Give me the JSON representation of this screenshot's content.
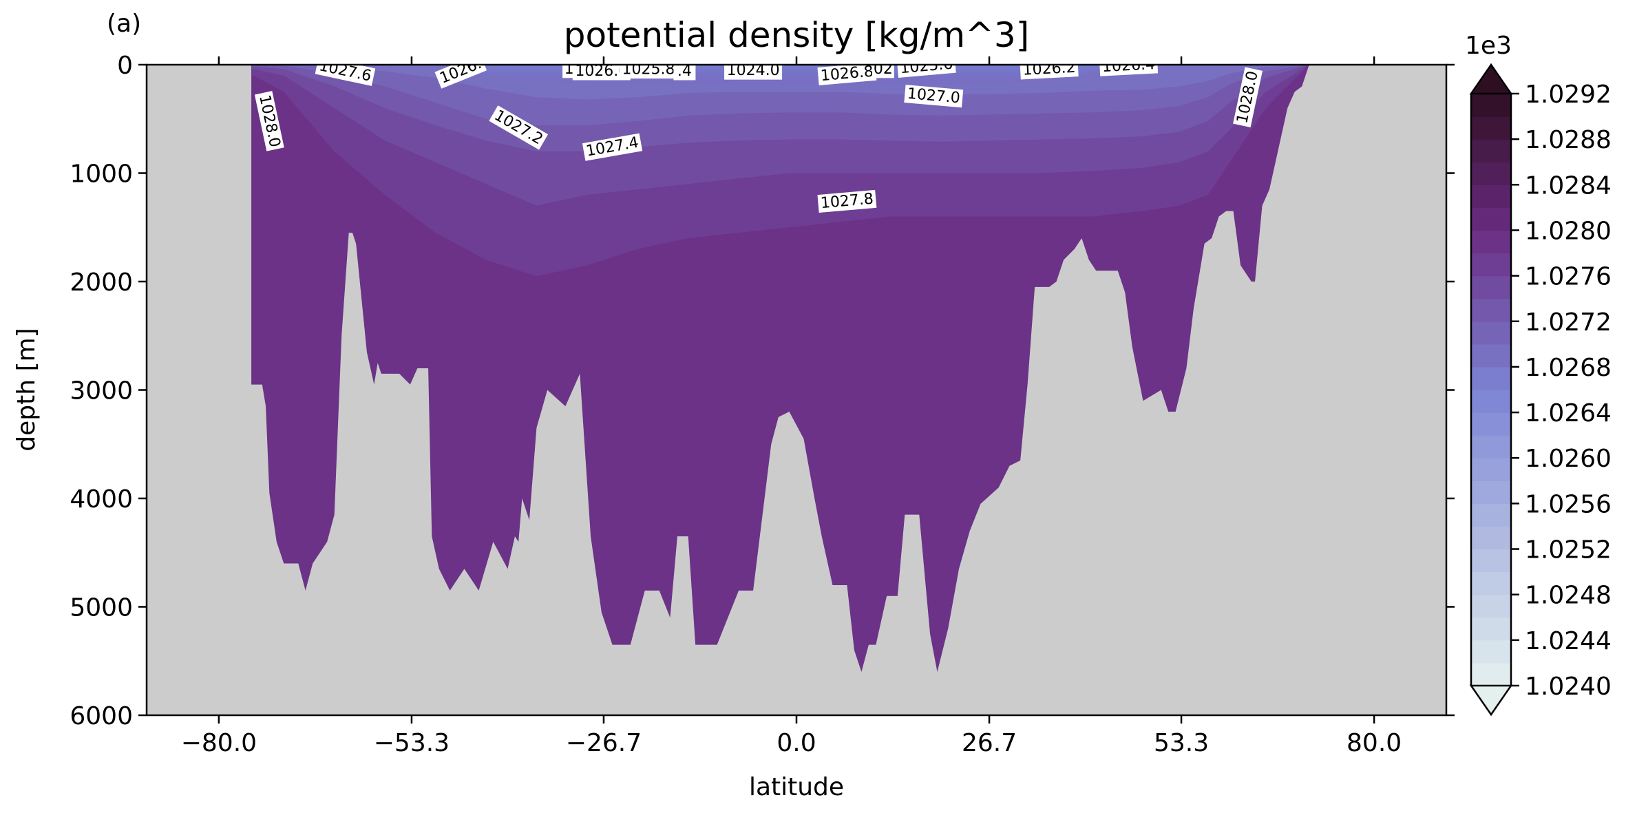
{
  "chart_data": {
    "type": "heatmap",
    "panel_label": "(a)",
    "title": "potential density [kg/m^3]",
    "xlabel": "latitude",
    "ylabel": "depth [m]",
    "xlim": [
      -90,
      90
    ],
    "ylim": [
      6000,
      0
    ],
    "x_ticks": [
      -80.0,
      -53.3,
      -26.7,
      0.0,
      26.7,
      53.3,
      80.0
    ],
    "x_tick_labels": [
      "−80.0",
      "−53.3",
      "−26.7",
      "0.0",
      "26.7",
      "53.3",
      "80.0"
    ],
    "y_ticks": [
      0,
      1000,
      2000,
      3000,
      4000,
      5000,
      6000
    ],
    "y_tick_labels": [
      "0",
      "1000",
      "2000",
      "3000",
      "4000",
      "5000",
      "6000"
    ],
    "colorbar": {
      "multiplier_label": "1e3",
      "range": [
        1.024,
        1.0292
      ],
      "extend": "both",
      "ticks": [
        1.024,
        1.0244,
        1.0248,
        1.0252,
        1.0256,
        1.026,
        1.0264,
        1.0268,
        1.0272,
        1.0276,
        1.028,
        1.0284,
        1.0288,
        1.0292
      ],
      "tick_labels": [
        "1.0240",
        "1.0244",
        "1.0248",
        "1.0252",
        "1.0256",
        "1.0260",
        "1.0264",
        "1.0268",
        "1.0272",
        "1.0276",
        "1.0280",
        "1.0284",
        "1.0288",
        "1.0292"
      ],
      "low_color": "#e4f0ee",
      "mid_color": "#7c84d4",
      "high_color": "#2e0f22"
    },
    "land_color": "#cccccc",
    "deep_color": "#6a2b82",
    "bottom_profile": {
      "lat": [
        -75.5,
        -74.0,
        -73.5,
        -73.0,
        -72.0,
        -71.0,
        -69.0,
        -68.0,
        -67.0,
        -65.0,
        -64.0,
        -63.0,
        -62.0,
        -61.5,
        -61.0,
        -59.5,
        -58.5,
        -58.0,
        -57.5,
        -55.0,
        -53.5,
        -52.5,
        -51.0,
        -50.5,
        -49.5,
        -48.0,
        -46.0,
        -44.0,
        -42.0,
        -40.0,
        -39.0,
        -38.5,
        -38.0,
        -37.0,
        -36.0,
        -34.5,
        -32.0,
        -30.0,
        -28.5,
        -27.0,
        -25.5,
        -23.0,
        -21.0,
        -19.0,
        -17.5,
        -16.5,
        -15.0,
        -14.0,
        -12.0,
        -11.0,
        -8.0,
        -6.0,
        -3.5,
        -2.5,
        -1.0,
        1.0,
        2.5,
        3.5,
        5.0,
        7.0,
        8.0,
        9.0,
        10.0,
        11.0,
        12.5,
        14.0,
        15.0,
        16.0,
        17.0,
        18.5,
        19.5,
        21.0,
        22.5,
        24.0,
        25.5,
        28.0,
        29.5,
        31.0,
        32.0,
        33.0,
        35.0,
        36.0,
        37.0,
        38.5,
        39.5,
        40.5,
        41.5,
        42.5,
        44.5,
        45.5,
        46.5,
        48.0,
        50.5,
        51.5,
        52.5,
        54.0,
        55.0,
        56.5,
        57.5,
        58.5,
        59.5,
        60.5,
        61.5,
        63.0,
        63.5,
        64.5,
        65.5,
        67.0,
        68.0,
        69.0,
        70.0,
        71.0
      ],
      "depth": [
        2950,
        2950,
        3150,
        3950,
        4400,
        4600,
        4600,
        4850,
        4600,
        4400,
        4150,
        2500,
        1550,
        1550,
        1650,
        2650,
        2950,
        2750,
        2850,
        2850,
        2950,
        2800,
        2800,
        4350,
        4650,
        4850,
        4650,
        4850,
        4400,
        4650,
        4350,
        4400,
        4000,
        4200,
        3350,
        3000,
        3150,
        2850,
        4350,
        5050,
        5350,
        5350,
        4850,
        4850,
        5100,
        4350,
        4350,
        5350,
        5350,
        5350,
        4850,
        4850,
        3500,
        3250,
        3200,
        3450,
        4000,
        4350,
        4800,
        4800,
        5400,
        5600,
        5350,
        5350,
        4900,
        4900,
        4150,
        4150,
        4150,
        5250,
        5600,
        5200,
        4650,
        4300,
        4050,
        3900,
        3700,
        3650,
        2950,
        2050,
        2050,
        2000,
        1800,
        1700,
        1600,
        1800,
        1900,
        1900,
        1900,
        2100,
        2600,
        3100,
        3000,
        3200,
        3200,
        2800,
        2250,
        1650,
        1600,
        1400,
        1350,
        1350,
        1850,
        2000,
        2000,
        1300,
        1150,
        700,
        400,
        250,
        200,
        0
      ]
    },
    "bands": [
      {
        "level": 1027.0,
        "lat": [
          -78,
          -71,
          -64,
          -57,
          -50,
          -43,
          -36,
          -29,
          -22,
          -15,
          -8,
          -1,
          6,
          13,
          20,
          27,
          34,
          41,
          48,
          53,
          57,
          60,
          65,
          71
        ],
        "depth": [
          0,
          0,
          20,
          60,
          120,
          220,
          300,
          320,
          300,
          260,
          250,
          250,
          250,
          270,
          280,
          270,
          260,
          240,
          230,
          200,
          150,
          80,
          20,
          0
        ]
      },
      {
        "level": 1027.2,
        "lat": [
          -78,
          -71,
          -64,
          -57,
          -50,
          -43,
          -36,
          -29,
          -22,
          -15,
          -8,
          -1,
          6,
          13,
          20,
          27,
          34,
          41,
          48,
          53,
          57,
          60,
          65,
          71
        ],
        "depth": [
          0,
          10,
          80,
          200,
          350,
          500,
          560,
          560,
          520,
          470,
          450,
          440,
          440,
          460,
          470,
          460,
          450,
          440,
          420,
          380,
          300,
          180,
          60,
          0
        ]
      },
      {
        "level": 1027.4,
        "lat": [
          -78,
          -71,
          -64,
          -57,
          -50,
          -43,
          -36,
          -29,
          -22,
          -15,
          -8,
          -1,
          6,
          13,
          20,
          27,
          34,
          41,
          48,
          53,
          57,
          60,
          65,
          71
        ],
        "depth": [
          0,
          40,
          200,
          400,
          560,
          700,
          800,
          800,
          760,
          720,
          700,
          690,
          690,
          700,
          710,
          700,
          690,
          680,
          660,
          620,
          520,
          350,
          120,
          0
        ]
      },
      {
        "level": 1027.6,
        "lat": [
          -78,
          -71,
          -64,
          -57,
          -50,
          -43,
          -36,
          -29,
          -22,
          -15,
          -8,
          -1,
          6,
          13,
          20,
          27,
          34,
          41,
          48,
          53,
          57,
          60,
          65,
          71
        ],
        "depth": [
          0,
          100,
          400,
          700,
          900,
          1100,
          1300,
          1200,
          1150,
          1100,
          1050,
          1000,
          1000,
          1000,
          1000,
          1000,
          1000,
          980,
          950,
          900,
          800,
          600,
          250,
          0
        ]
      },
      {
        "level": 1027.8,
        "lat": [
          -78,
          -71,
          -64,
          -57,
          -50,
          -43,
          -36,
          -29,
          -22,
          -15,
          -8,
          -1,
          6,
          13,
          20,
          27,
          34,
          41,
          48,
          53,
          57,
          60,
          65,
          71
        ],
        "depth": [
          0,
          250,
          800,
          1200,
          1550,
          1800,
          1950,
          1850,
          1700,
          1600,
          1550,
          1500,
          1450,
          1400,
          1400,
          1400,
          1400,
          1400,
          1350,
          1300,
          1200,
          900,
          400,
          0
        ]
      }
    ],
    "contour_labels": [
      {
        "text": "1027.6",
        "lat": -62.5,
        "depth": 60,
        "rotation": 12
      },
      {
        "text": "1026.",
        "lat": -46.5,
        "depth": 60,
        "rotation": -22
      },
      {
        "text": "1028.0",
        "lat": -73.0,
        "depth": 520,
        "rotation": 78
      },
      {
        "text": "1027.2",
        "lat": -38.5,
        "depth": 580,
        "rotation": 30
      },
      {
        "text": "1027.4",
        "lat": -25.5,
        "depth": 760,
        "rotation": -10
      },
      {
        "text": "1",
        "lat": -31.5,
        "depth": 40,
        "rotation": 0
      },
      {
        "text": "1026.0",
        "lat": -27.0,
        "depth": 60,
        "rotation": 0
      },
      {
        "text": "1025.8",
        "lat": -20.5,
        "depth": 45,
        "rotation": 0
      },
      {
        "text": ".4",
        "lat": -15.5,
        "depth": 60,
        "rotation": 0
      },
      {
        "text": "1024.0",
        "lat": -6.0,
        "depth": 55,
        "rotation": 0
      },
      {
        "text": "1026.8",
        "lat": 7.0,
        "depth": 85,
        "rotation": -5
      },
      {
        "text": "02",
        "lat": 12.0,
        "depth": 40,
        "rotation": 0
      },
      {
        "text": "1025.6",
        "lat": 18.0,
        "depth": 15,
        "rotation": -5
      },
      {
        "text": "1027.0",
        "lat": 19.0,
        "depth": 290,
        "rotation": 5
      },
      {
        "text": "1026.2",
        "lat": 35.0,
        "depth": 40,
        "rotation": -3
      },
      {
        "text": "1026.4",
        "lat": 46.0,
        "depth": 10,
        "rotation": -3
      },
      {
        "text": "1028.0",
        "lat": 62.5,
        "depth": 300,
        "rotation": -78
      },
      {
        "text": "1027.8",
        "lat": 7.0,
        "depth": 1260,
        "rotation": -5
      }
    ]
  }
}
